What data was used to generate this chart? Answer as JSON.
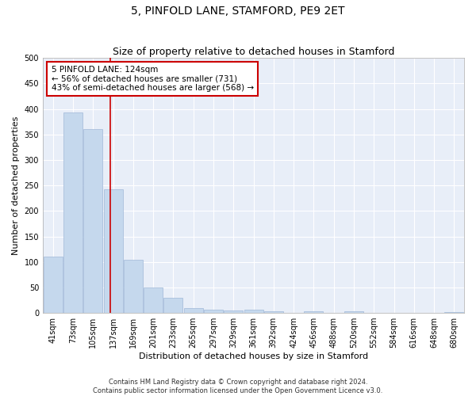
{
  "title": "5, PINFOLD LANE, STAMFORD, PE9 2ET",
  "subtitle": "Size of property relative to detached houses in Stamford",
  "xlabel": "Distribution of detached houses by size in Stamford",
  "ylabel": "Number of detached properties",
  "bar_color": "#c5d8ed",
  "bar_edge_color": "#a0b8d8",
  "categories": [
    "41sqm",
    "73sqm",
    "105sqm",
    "137sqm",
    "169sqm",
    "201sqm",
    "233sqm",
    "265sqm",
    "297sqm",
    "329sqm",
    "361sqm",
    "392sqm",
    "424sqm",
    "456sqm",
    "488sqm",
    "520sqm",
    "552sqm",
    "584sqm",
    "616sqm",
    "648sqm",
    "680sqm"
  ],
  "values": [
    110,
    393,
    360,
    243,
    104,
    50,
    30,
    9,
    7,
    5,
    6,
    4,
    0,
    3,
    0,
    3,
    0,
    0,
    0,
    0,
    2
  ],
  "ylim": [
    0,
    500
  ],
  "yticks": [
    0,
    50,
    100,
    150,
    200,
    250,
    300,
    350,
    400,
    450,
    500
  ],
  "vline_x": 2.87,
  "annotation_text": "5 PINFOLD LANE: 124sqm\n← 56% of detached houses are smaller (731)\n43% of semi-detached houses are larger (568) →",
  "annotation_box_color": "#ffffff",
  "annotation_box_edge": "#cc0000",
  "footnote1": "Contains HM Land Registry data © Crown copyright and database right 2024.",
  "footnote2": "Contains public sector information licensed under the Open Government Licence v3.0.",
  "background_color": "#e8eef8",
  "grid_color": "#ffffff",
  "fig_background": "#ffffff",
  "title_fontsize": 10,
  "subtitle_fontsize": 9,
  "axis_label_fontsize": 8,
  "tick_fontsize": 7,
  "annotation_fontsize": 7.5,
  "footnote_fontsize": 6
}
